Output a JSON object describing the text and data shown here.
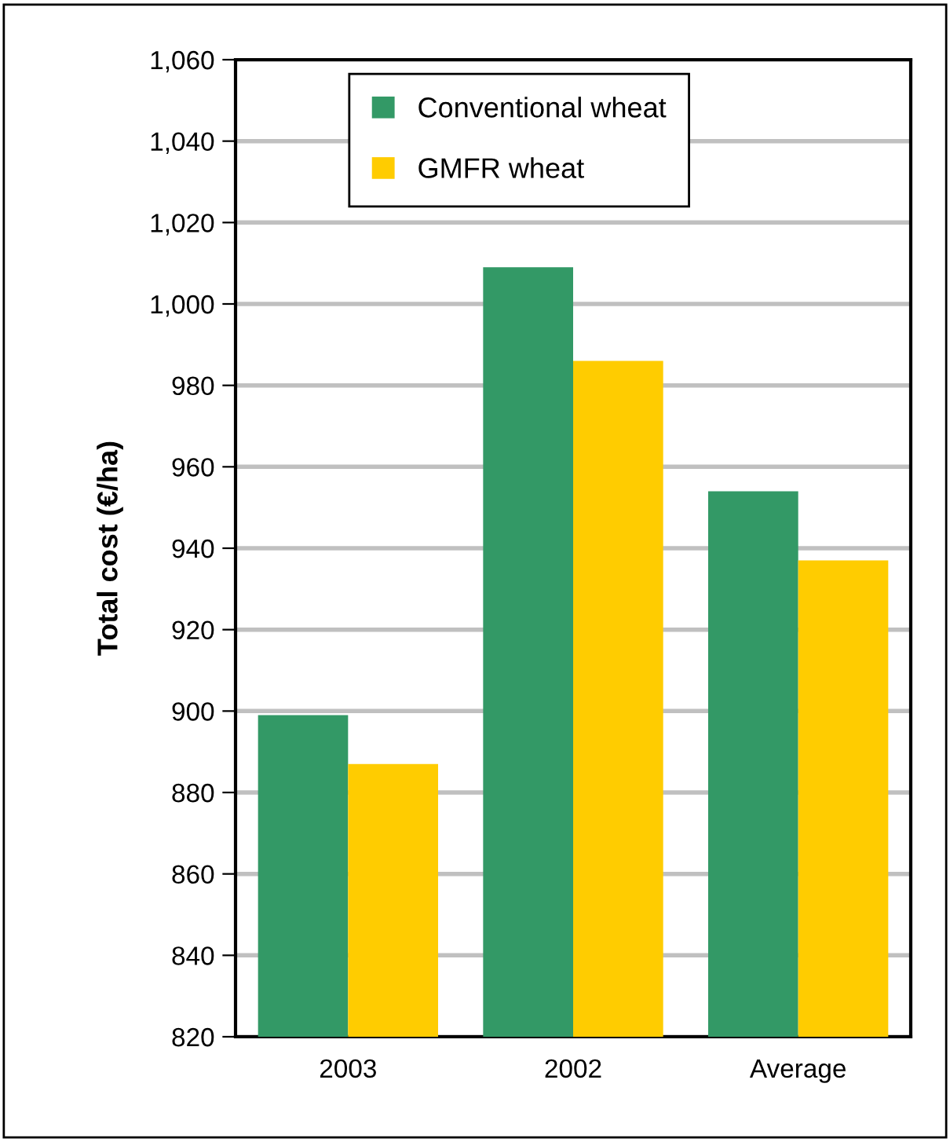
{
  "chart_data": {
    "type": "bar",
    "ylabel": "Total cost (€/ha)",
    "categories": [
      "2003",
      "2002",
      "Average"
    ],
    "series": [
      {
        "name": "Conventional wheat",
        "color": "#339966",
        "values": [
          899,
          1009,
          954
        ]
      },
      {
        "name": "GMFR wheat",
        "color": "#ffcc00",
        "values": [
          887,
          986,
          937
        ]
      }
    ],
    "ylim": [
      820,
      1060
    ],
    "yticks": [
      {
        "value": 820,
        "label": "820"
      },
      {
        "value": 840,
        "label": "840"
      },
      {
        "value": 860,
        "label": "860"
      },
      {
        "value": 880,
        "label": "880"
      },
      {
        "value": 900,
        "label": "900"
      },
      {
        "value": 920,
        "label": "920"
      },
      {
        "value": 940,
        "label": "940"
      },
      {
        "value": 960,
        "label": "960"
      },
      {
        "value": 980,
        "label": "980"
      },
      {
        "value": 1000,
        "label": "1,000"
      },
      {
        "value": 1020,
        "label": "1,020"
      },
      {
        "value": 1040,
        "label": "1,040"
      },
      {
        "value": 1060,
        "label": "1,060"
      }
    ],
    "grid": "y",
    "legend": "top"
  }
}
